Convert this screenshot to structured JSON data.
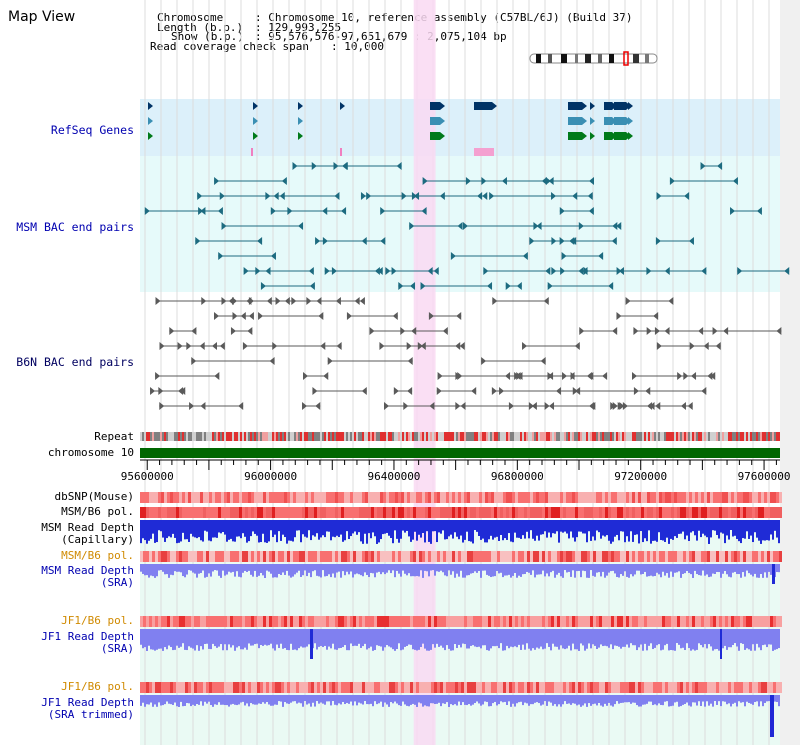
{
  "title": "Map View",
  "header": {
    "chromosome_key": "Chromosome",
    "chromosome_value": ": Chromosome 10, reference assembly (C57BL/6J) (Build 37)",
    "length_key": "Length (b.p.)",
    "length_value": ": 129,993,255",
    "show_key": "Show (b.p.)",
    "show_value": ": 95,576,576-97,651,679 : 2,075,104 bp",
    "coverage_key": "Read coverage check span",
    "coverage_value": ": 10,000"
  },
  "tracks": {
    "refseq": "RefSeq Genes",
    "msm_bac": "MSM BAC end pairs",
    "b6n_bac": "B6N BAC end pairs",
    "repeat": "Repeat",
    "chromosome": "chromosome 10",
    "dbsnp": "dbSNP(Mouse)",
    "msm_b6_pol_1": "MSM/B6 pol.",
    "msm_depth_cap_1": "MSM Read Depth",
    "msm_depth_cap_2": "(Capillary)",
    "msm_b6_pol_2": "MSM/B6 pol.",
    "msm_depth_sra_1": "MSM Read Depth",
    "msm_depth_sra_2": "(SRA)",
    "jf1_pol_1": "JF1/B6 pol.",
    "jf1_depth_1": "JF1 Read Depth",
    "jf1_depth_2": "(SRA)",
    "jf1_pol_2": "JF1/B6 pol.",
    "jf1_trim_1": "JF1 Read Depth",
    "jf1_trim_2": "(SRA trimmed)"
  },
  "axis": {
    "ticks": [
      {
        "pos": 95600000,
        "label": "95600000"
      },
      {
        "pos": 96000000,
        "label": "96000000"
      },
      {
        "pos": 96400000,
        "label": "96400000"
      },
      {
        "pos": 96800000,
        "label": "96800000"
      },
      {
        "pos": 97200000,
        "label": "97200000"
      },
      {
        "pos": 97600000,
        "label": "97600000"
      }
    ],
    "range": [
      95576576,
      97651679
    ]
  },
  "highlight_range": [
    96464000,
    96535000
  ],
  "colors": {
    "refseq_bg": "#dcf0fa",
    "msm_bg": "#e6fafa",
    "highlight": "#f9d9f2",
    "gene_dark": "#003366",
    "gene_teal": "#3a8fb3",
    "gene_green": "#007a1a",
    "msm_line": "#1d6b80",
    "b6n_line": "#5a5a5a",
    "chromosome": "#006600",
    "depth_blue": "#1f2bd6",
    "depth_light": "#8080f0",
    "pol_red": "#f04040",
    "label_blue": "#0000b0",
    "label_orange": "#d08a00"
  }
}
